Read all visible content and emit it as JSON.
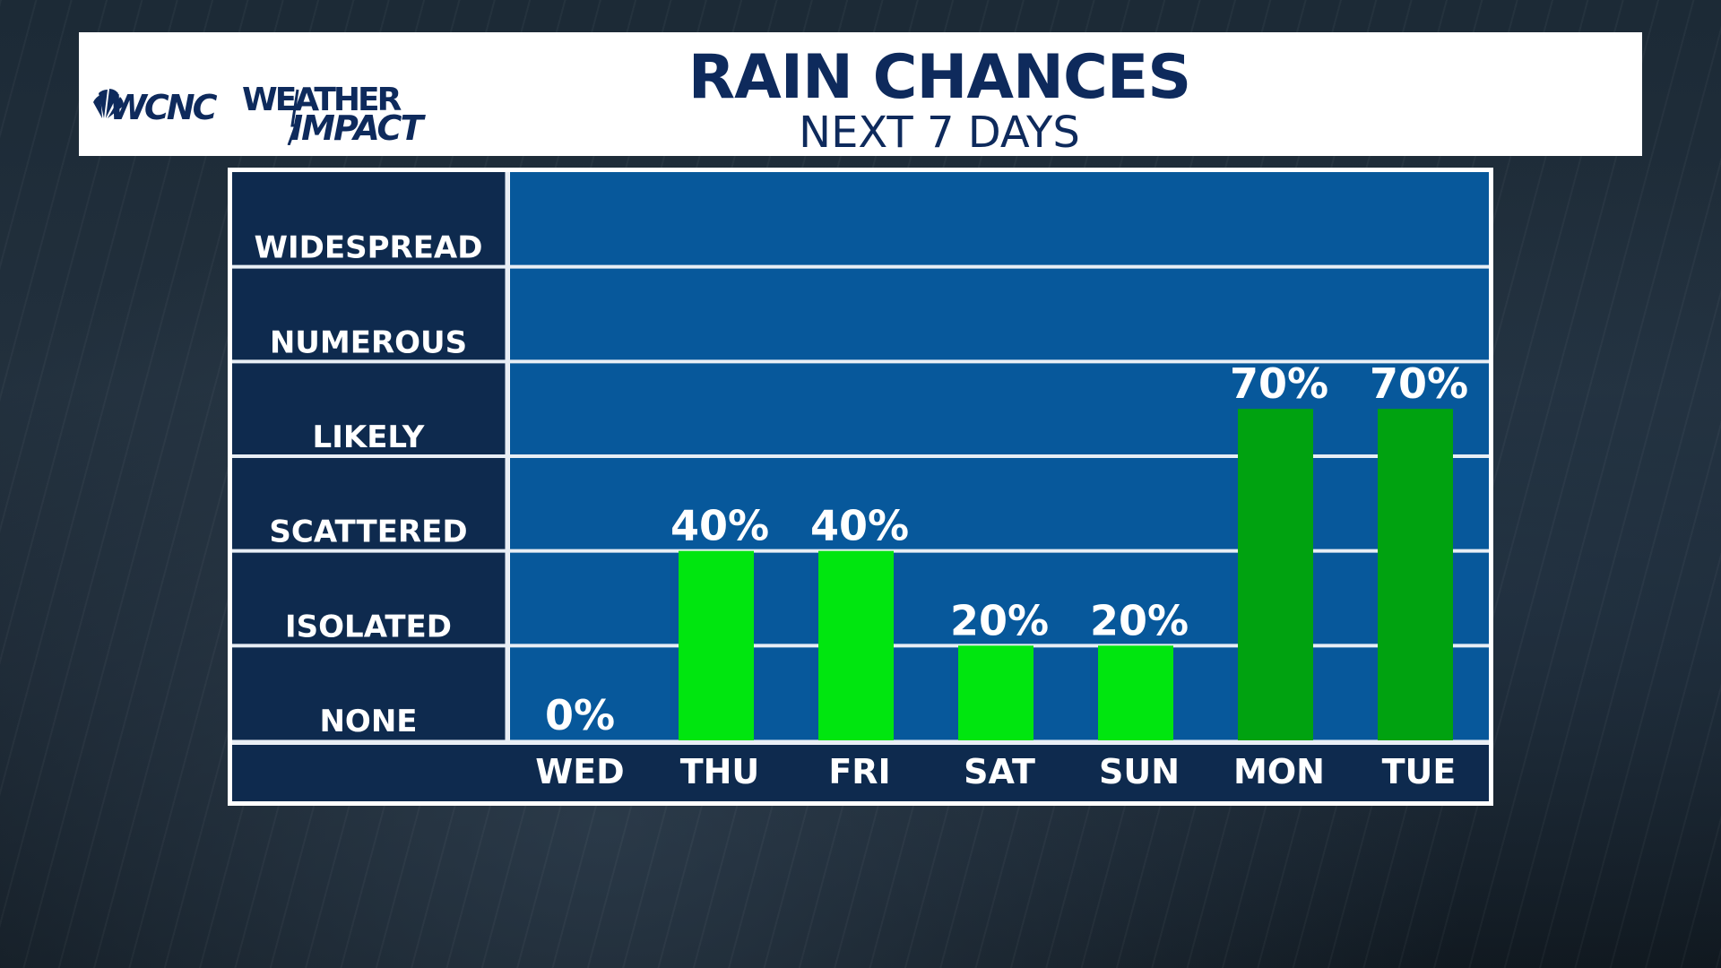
{
  "header": {
    "logo_text_station": "WCNC",
    "logo_text_weather": "WEATHER",
    "logo_text_impact": "IMPACT",
    "title": "RAIN CHANCES",
    "subtitle": "NEXT 7 DAYS"
  },
  "colors": {
    "header_bg": "#ffffff",
    "title": "#0e2a5c",
    "plot_bg": "#07589b",
    "label_col_bg": "#0e2a4e",
    "grid": "#e8eef5",
    "bar_low": "#00e60f",
    "bar_high": "#00a210"
  },
  "chart_data": {
    "type": "bar",
    "title": "RAIN CHANCES",
    "subtitle": "NEXT 7 DAYS",
    "categories": [
      "WED",
      "THU",
      "FRI",
      "SAT",
      "SUN",
      "MON",
      "TUE"
    ],
    "values": [
      0,
      40,
      40,
      20,
      20,
      70,
      70
    ],
    "value_labels": [
      "0%",
      "40%",
      "40%",
      "20%",
      "20%",
      "70%",
      "70%"
    ],
    "unit": "%",
    "ylim": [
      0,
      100
    ],
    "y_categories": [
      "NONE",
      "ISOLATED",
      "SCATTERED",
      "LIKELY",
      "NUMEROUS",
      "WIDESPREAD"
    ],
    "bar_colors": [
      "#00e60f",
      "#00e60f",
      "#00e60f",
      "#00e60f",
      "#00e60f",
      "#00a210",
      "#00a210"
    ],
    "grid": true
  }
}
